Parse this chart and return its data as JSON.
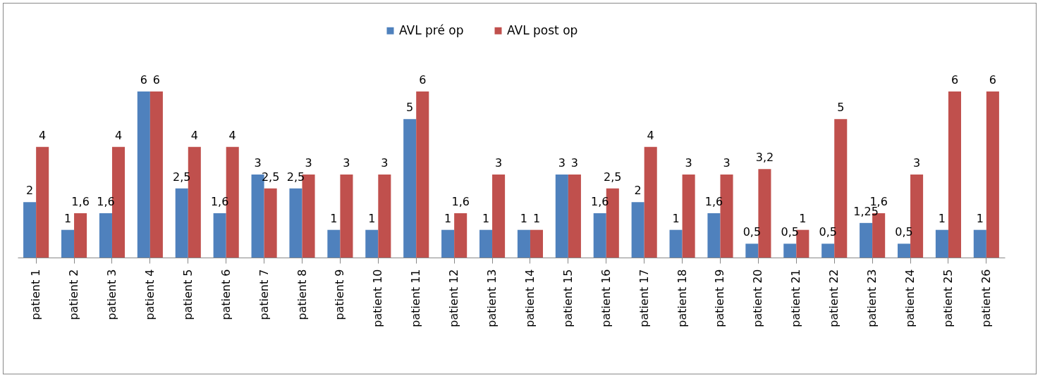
{
  "chart_data": {
    "type": "bar",
    "categories": [
      "patient 1",
      "patient 2",
      "patient 3",
      "patient 4",
      "patient 5",
      "patient 6",
      "patient 7",
      "patient 8",
      "patient 9",
      "patient 10",
      "patient 11",
      "patient 12",
      "patient 13",
      "patient 14",
      "patient 15",
      "patient 16",
      "patient 17",
      "patient 18",
      "patient 19",
      "patient 20",
      "patient 21",
      "patient 22",
      "patient 23",
      "patient 24",
      "patient 25",
      "patient 26"
    ],
    "series": [
      {
        "name": "AVL pré op",
        "color": "#4f81bd",
        "values": [
          2,
          1,
          1.6,
          6,
          2.5,
          1.6,
          3,
          2.5,
          1,
          1,
          5,
          1,
          1,
          1,
          3,
          1.6,
          2,
          1,
          1.6,
          0.5,
          0.5,
          0.5,
          1.25,
          0.5,
          1,
          1
        ],
        "value_labels": [
          "2",
          "1",
          "1,6",
          "6",
          "2,5",
          "1,6",
          "3",
          "2,5",
          "1",
          "1",
          "5",
          "1",
          "1",
          "1",
          "3",
          "1,6",
          "2",
          "1",
          "1,6",
          "0,5",
          "0,5",
          "0,5",
          "1,25",
          "0,5",
          "1",
          "1"
        ]
      },
      {
        "name": "AVL post op",
        "color": "#c0504d",
        "values": [
          4,
          1.6,
          4,
          6,
          4,
          4,
          2.5,
          3,
          3,
          3,
          6,
          1.6,
          3,
          1,
          3,
          2.5,
          4,
          3,
          3,
          3.2,
          1,
          5,
          1.6,
          3,
          6,
          6
        ],
        "value_labels": [
          "4",
          "1,6",
          "4",
          "6",
          "4",
          "4",
          "2,5",
          "3",
          "3",
          "3",
          "6",
          "1,6",
          "3",
          "1",
          "3",
          "2,5",
          "4",
          "3",
          "3",
          "3,2",
          "1",
          "5",
          "1,6",
          "3",
          "6",
          "6"
        ]
      }
    ],
    "legend": "top",
    "grid": false
  }
}
